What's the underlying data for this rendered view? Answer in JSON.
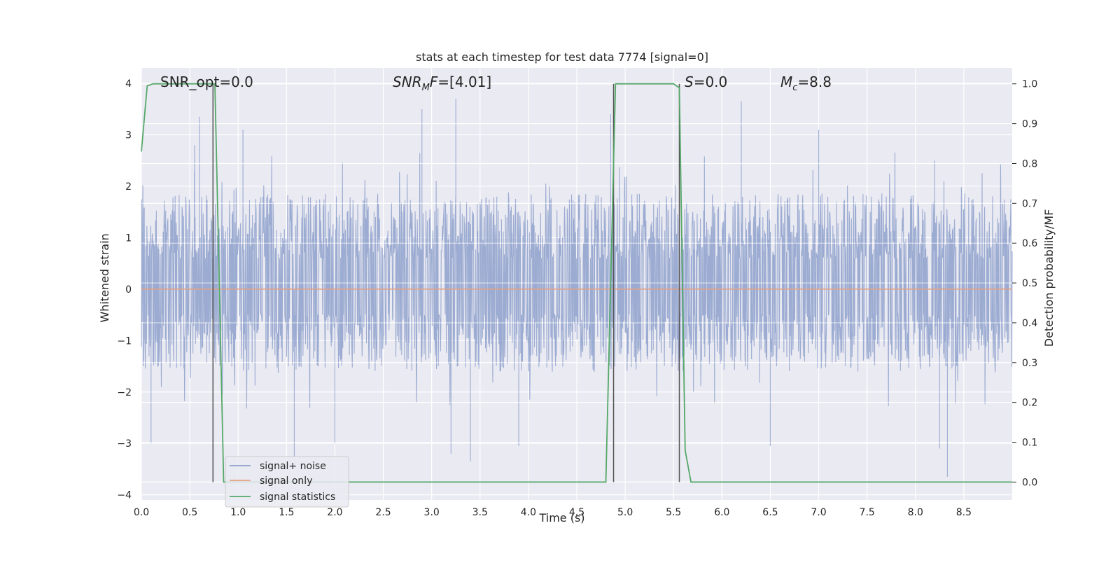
{
  "chart_data": {
    "type": "line",
    "title": "stats at each timestep for test data 7774 [signal=0]",
    "xlabel": "Time (s)",
    "ylabel": "Whitened strain",
    "ylabel_right": "Detection probability/MF",
    "xlim": [
      0.0,
      9.0
    ],
    "ylim": [
      -4.1,
      4.3
    ],
    "ylim_right": [
      -0.045,
      1.04
    ],
    "x_ticks": [
      "0.0",
      "0.5",
      "1.0",
      "1.5",
      "2.0",
      "2.5",
      "3.0",
      "3.5",
      "4.0",
      "4.5",
      "5.0",
      "5.5",
      "6.0",
      "6.5",
      "7.0",
      "7.5",
      "8.0",
      "8.5"
    ],
    "x_tick_values": [
      0.0,
      0.5,
      1.0,
      1.5,
      2.0,
      2.5,
      3.0,
      3.5,
      4.0,
      4.5,
      5.0,
      5.5,
      6.0,
      6.5,
      7.0,
      7.5,
      8.0,
      8.5
    ],
    "y_ticks": [
      "4",
      "3",
      "2",
      "1",
      "0",
      "−1",
      "−2",
      "−3",
      "−4"
    ],
    "y_tick_values": [
      4,
      3,
      2,
      1,
      0,
      -1,
      -2,
      -3,
      -4
    ],
    "y_right_ticks": [
      "1.0",
      "0.9",
      "0.8",
      "0.7",
      "0.6",
      "0.5",
      "0.4",
      "0.3",
      "0.2",
      "0.1",
      "0.0"
    ],
    "y_right_tick_values": [
      1.0,
      0.9,
      0.8,
      0.7,
      0.6,
      0.5,
      0.4,
      0.3,
      0.2,
      0.1,
      0.0
    ],
    "grid": true,
    "legend_placement": "lower-left",
    "annotations": {
      "snr_opt": "SNR_opt=0.0",
      "snr_mf_main": "SNR",
      "snr_mf_sub": "M",
      "snr_mf_rest": "F=[4.01]",
      "s_italic": "S",
      "s_rest": "=0.0",
      "mc_main": "M",
      "mc_sub": "c",
      "mc_rest": "=8.8"
    },
    "series": [
      {
        "name": "signal+ noise",
        "color": "#8da0cb",
        "typical_range": [
          -1.4,
          1.7
        ],
        "peaks": [
          [
            0.6,
            3.35
          ],
          [
            2.9,
            3.5
          ],
          [
            3.25,
            3.7
          ],
          [
            6.2,
            3.65
          ],
          [
            4.85,
            3.4
          ],
          [
            1.05,
            3.1
          ],
          [
            7.0,
            3.1
          ],
          [
            8.2,
            2.5
          ],
          [
            0.55,
            2.8
          ]
        ],
        "troughs": [
          [
            1.58,
            -3.25
          ],
          [
            3.4,
            -3.35
          ],
          [
            3.2,
            -3.2
          ],
          [
            8.33,
            -3.65
          ],
          [
            0.1,
            -3.0
          ],
          [
            6.5,
            -3.05
          ],
          [
            2.0,
            -3.0
          ],
          [
            3.9,
            -3.05
          ],
          [
            8.25,
            -3.1
          ]
        ]
      },
      {
        "name": "signal only",
        "color": "#e5a083",
        "y": 0.0
      },
      {
        "name": "signal statistics",
        "color": "#55a868",
        "x": [
          0.0,
          0.06,
          0.12,
          0.72,
          0.76,
          0.85,
          4.8,
          4.9,
          5.5,
          5.56,
          5.62,
          5.68,
          9.0
        ],
        "y": [
          0.83,
          0.995,
          1.0,
          1.0,
          1.0,
          0.0,
          0.0,
          1.0,
          1.0,
          0.99,
          0.08,
          0.0,
          0.0
        ]
      }
    ],
    "vertical_markers": {
      "color": "#555555",
      "x": [
        0.74,
        4.88,
        5.56
      ],
      "y_top_right": [
        1.0,
        1.0,
        0.0
      ],
      "y_bottom_right": [
        0.0,
        0.0,
        1.0
      ]
    }
  }
}
